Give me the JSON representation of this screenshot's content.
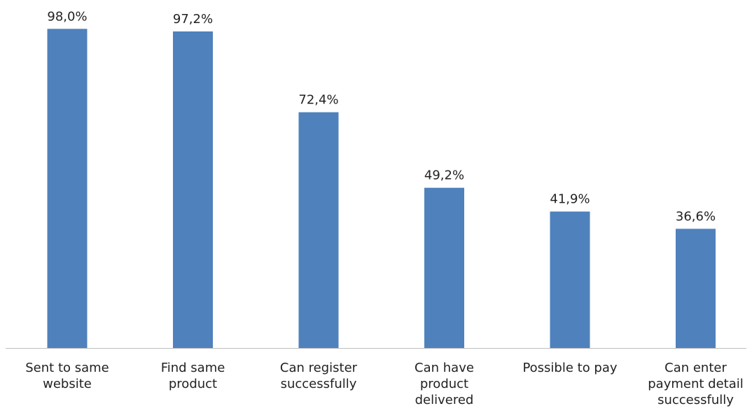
{
  "chart_data": {
    "type": "bar",
    "categories": [
      [
        "Sent to same",
        "website"
      ],
      [
        "Find same",
        "product"
      ],
      [
        "Can register",
        "successfully"
      ],
      [
        "Can have",
        "product",
        "delivered"
      ],
      [
        "Possible to pay"
      ],
      [
        "Can enter",
        "payment detail",
        "successfully"
      ]
    ],
    "values": [
      98.0,
      97.2,
      72.4,
      49.2,
      41.9,
      36.6
    ],
    "data_labels": [
      "98,0%",
      "97,2%",
      "72,4%",
      "49,2%",
      "41,9%",
      "36,6%"
    ],
    "title": "",
    "xlabel": "",
    "ylabel": "",
    "ylim": [
      0,
      100
    ],
    "grid": false,
    "legend": "none",
    "colors": {
      "bar": "#4f81bd",
      "axis": "#bfbfbf",
      "text": "#222222"
    }
  }
}
